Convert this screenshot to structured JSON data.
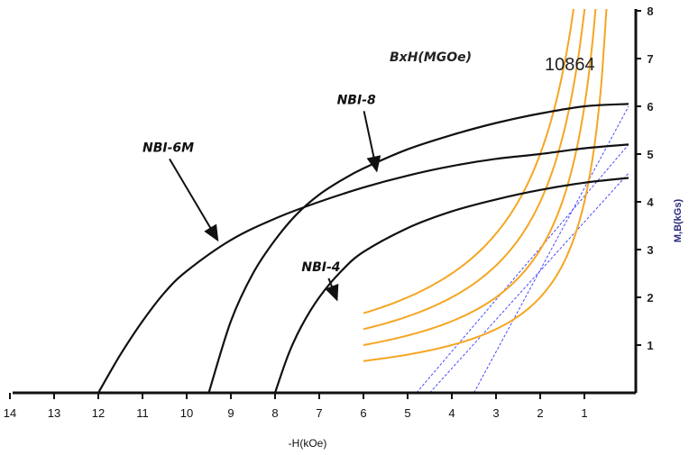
{
  "chart_data": {
    "type": "line",
    "title": "",
    "xlabel": "-H(kOe)",
    "ylabel": "M,B(kGs)",
    "xlim": [
      14,
      0
    ],
    "ylim": [
      0,
      8
    ],
    "x_direction": "reversed",
    "x_tick_labels": [
      "14",
      "13",
      "12",
      "11",
      "10",
      "9",
      "8",
      "7",
      "6",
      "5",
      "4",
      "3",
      "2",
      "1"
    ],
    "y_tick_labels": [
      "1",
      "2",
      "3",
      "4",
      "5",
      "6",
      "7",
      "8"
    ],
    "grid": false,
    "legend": "none",
    "series": [
      {
        "name": "NBI-8",
        "color": "#111111",
        "points": [
          [
            9.5,
            0
          ],
          [
            9.0,
            1.5
          ],
          [
            8.5,
            2.5
          ],
          [
            8.0,
            3.2
          ],
          [
            7.5,
            3.75
          ],
          [
            7.0,
            4.15
          ],
          [
            6.5,
            4.45
          ],
          [
            6.0,
            4.7
          ],
          [
            5.0,
            5.1
          ],
          [
            4.0,
            5.4
          ],
          [
            3.0,
            5.65
          ],
          [
            2.0,
            5.85
          ],
          [
            1.0,
            6.0
          ],
          [
            0.0,
            6.05
          ]
        ]
      },
      {
        "name": "NBI-6M",
        "color": "#111111",
        "points": [
          [
            12.0,
            0
          ],
          [
            11.5,
            0.8
          ],
          [
            11.0,
            1.5
          ],
          [
            10.5,
            2.1
          ],
          [
            10.0,
            2.55
          ],
          [
            9.0,
            3.2
          ],
          [
            8.0,
            3.65
          ],
          [
            7.0,
            4.0
          ],
          [
            6.0,
            4.3
          ],
          [
            5.0,
            4.55
          ],
          [
            4.0,
            4.75
          ],
          [
            3.0,
            4.9
          ],
          [
            2.0,
            5.0
          ],
          [
            1.0,
            5.12
          ],
          [
            0.0,
            5.2
          ]
        ]
      },
      {
        "name": "NBI-4",
        "color": "#111111",
        "points": [
          [
            8.0,
            0
          ],
          [
            7.7,
            0.8
          ],
          [
            7.4,
            1.4
          ],
          [
            7.0,
            2.0
          ],
          [
            6.5,
            2.55
          ],
          [
            6.0,
            2.95
          ],
          [
            5.0,
            3.45
          ],
          [
            4.0,
            3.8
          ],
          [
            3.0,
            4.05
          ],
          [
            2.0,
            4.25
          ],
          [
            1.0,
            4.4
          ],
          [
            0.0,
            4.5
          ]
        ]
      }
    ],
    "energy_curves": {
      "label": "BxH(MGOe)",
      "values_label": "10864",
      "values": [
        10,
        8,
        6,
        4
      ],
      "color": "#f5a623",
      "x_range": [
        6.0,
        0.6
      ]
    },
    "load_lines": {
      "color": "#4a4aff",
      "style": "dashed",
      "lines": [
        [
          [
            4.8,
            0
          ],
          [
            0.0,
            5.2
          ]
        ],
        [
          [
            4.5,
            0
          ],
          [
            0.0,
            4.6
          ]
        ],
        [
          [
            3.5,
            0
          ],
          [
            0.0,
            6.0
          ]
        ]
      ]
    },
    "annotations": [
      {
        "text": "NBI-8",
        "at": [
          6.6,
          6.05
        ],
        "arrow_to": [
          5.7,
          4.65
        ]
      },
      {
        "text": "NBI-6M",
        "at": [
          11.0,
          5.05
        ],
        "arrow_to": [
          9.3,
          3.2
        ]
      },
      {
        "text": "NBI-4",
        "at": [
          7.4,
          2.55
        ],
        "arrow_to": [
          6.6,
          1.95
        ]
      }
    ]
  }
}
